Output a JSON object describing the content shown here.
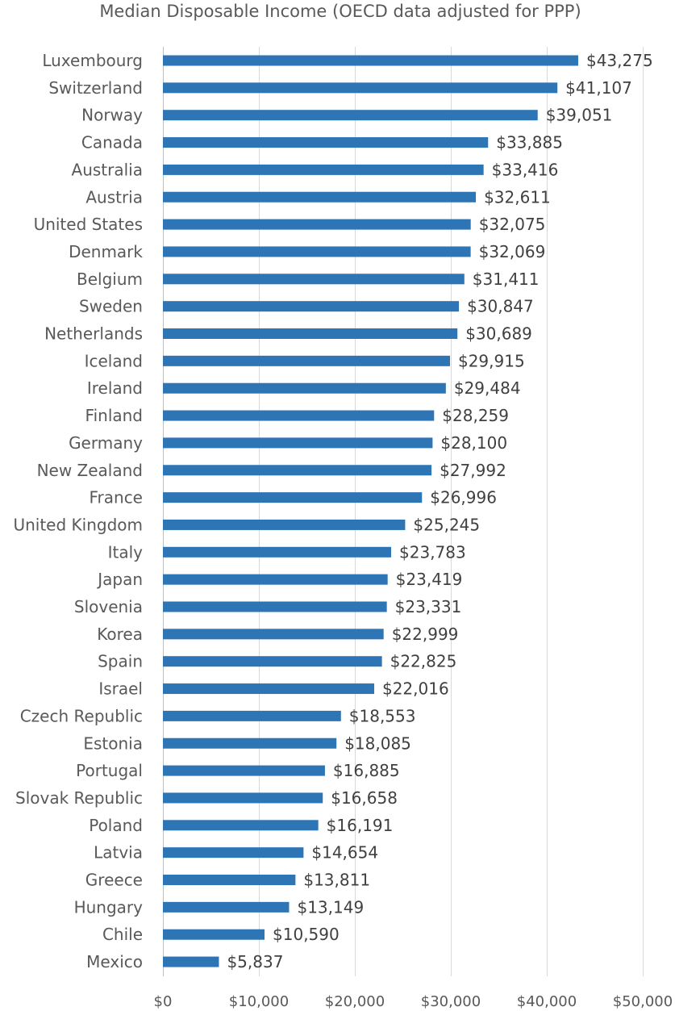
{
  "chart_data": {
    "type": "bar",
    "orientation": "horizontal",
    "title": "Median Disposable Income (OECD data adjusted for PPP)",
    "categories": [
      "Luxembourg",
      "Switzerland",
      "Norway",
      "Canada",
      "Australia",
      "Austria",
      "United States",
      "Denmark",
      "Belgium",
      "Sweden",
      "Netherlands",
      "Iceland",
      "Ireland",
      "Finland",
      "Germany",
      "New Zealand",
      "France",
      "United Kingdom",
      "Italy",
      "Japan",
      "Slovenia",
      "Korea",
      "Spain",
      "Israel",
      "Czech Republic",
      "Estonia",
      "Portugal",
      "Slovak Republic",
      "Poland",
      "Latvia",
      "Greece",
      "Hungary",
      "Chile",
      "Mexico"
    ],
    "values": [
      43275,
      41107,
      39051,
      33885,
      33416,
      32611,
      32075,
      32069,
      31411,
      30847,
      30689,
      29915,
      29484,
      28259,
      28100,
      27992,
      26996,
      25245,
      23783,
      23419,
      23331,
      22999,
      22825,
      22016,
      18553,
      18085,
      16885,
      16658,
      16191,
      14654,
      13811,
      13149,
      10590,
      5837
    ],
    "value_labels": [
      "$43,275",
      "$41,107",
      "$39,051",
      "$33,885",
      "$33,416",
      "$32,611",
      "$32,075",
      "$32,069",
      "$31,411",
      "$30,847",
      "$30,689",
      "$29,915",
      "$29,484",
      "$28,259",
      "$28,100",
      "$27,992",
      "$26,996",
      "$25,245",
      "$23,783",
      "$23,419",
      "$23,331",
      "$22,999",
      "$22,825",
      "$22,016",
      "$18,553",
      "$18,085",
      "$16,885",
      "$16,658",
      "$16,191",
      "$14,654",
      "$13,811",
      "$13,149",
      "$10,590",
      "$5,837"
    ],
    "xlim": [
      0,
      50000
    ],
    "x_ticks": [
      0,
      10000,
      20000,
      30000,
      40000,
      50000
    ],
    "x_tick_labels": [
      "$0",
      "$10,000",
      "$20,000",
      "$30,000",
      "$40,000",
      "$50,000"
    ],
    "grid": true,
    "legend": "none",
    "bar_color": "#2e75b6"
  }
}
